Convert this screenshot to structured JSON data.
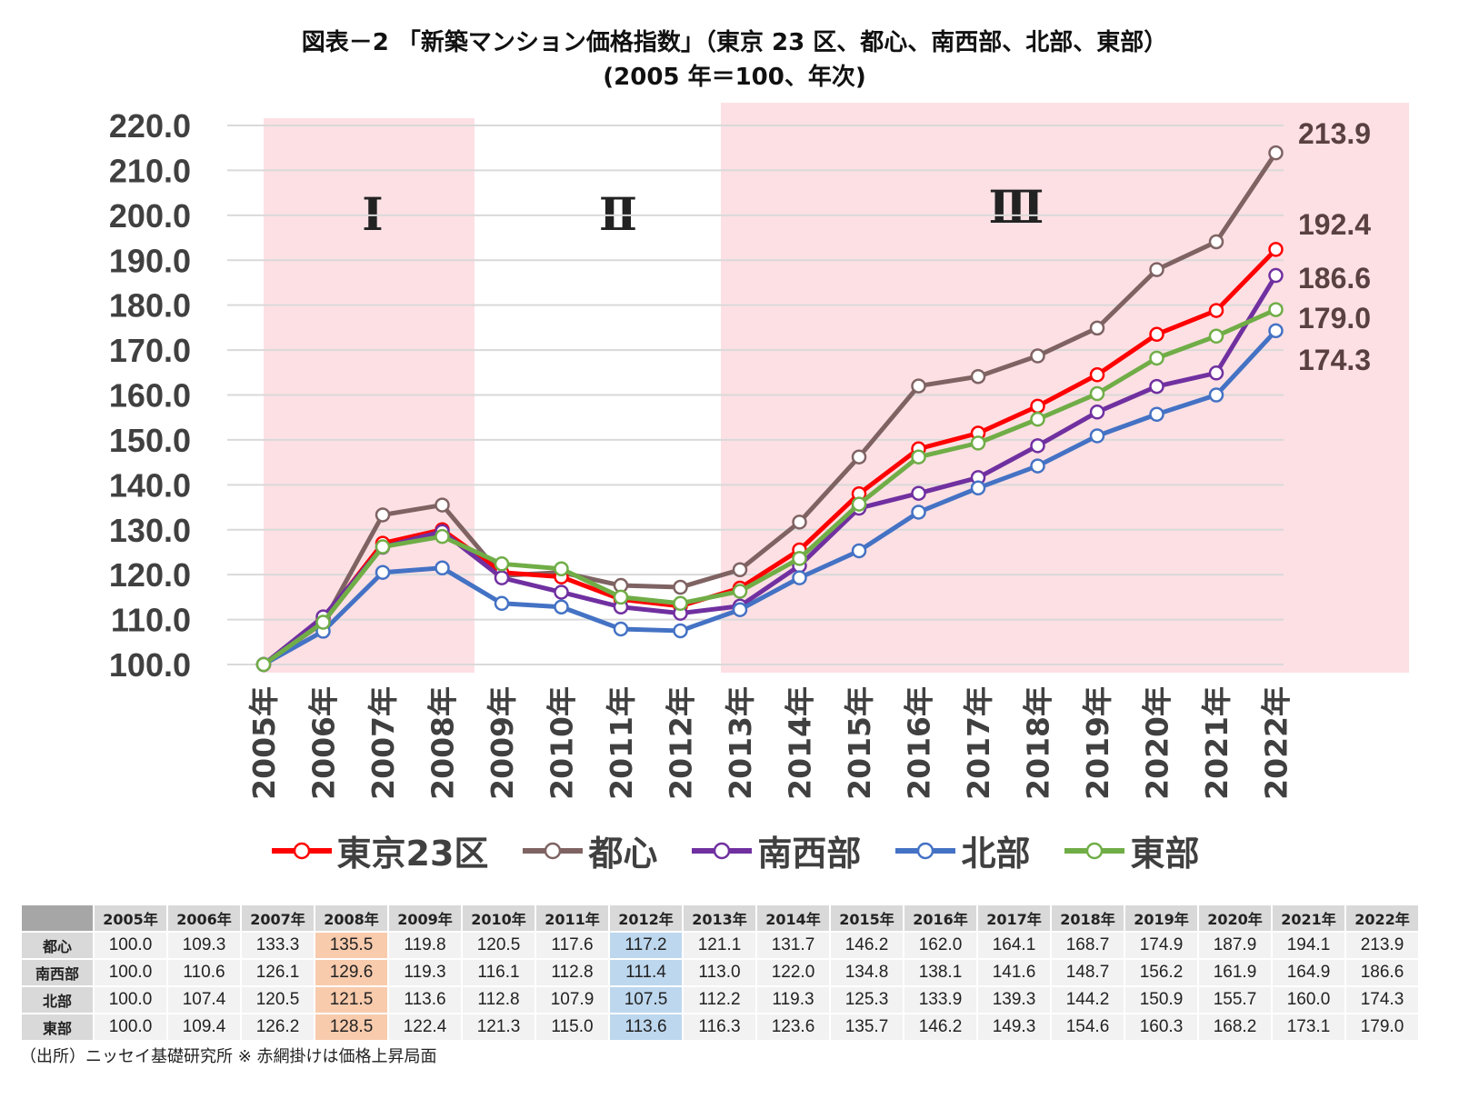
{
  "title_lines": [
    "図表－2 「新築マンション価格指数」（東京 23 区、都心、南西部、北部、東部）",
    "(2005 年＝100、年次)"
  ],
  "chart_data": {
    "type": "line",
    "title": "図表－2 「新築マンション価格指数」（東京 23 区、都心、南西部、北部、東部） (2005 年＝100、年次)",
    "xlabel": "",
    "ylabel": "",
    "ylim": [
      100,
      220
    ],
    "yticks": [
      "100.0",
      "110.0",
      "120.0",
      "130.0",
      "140.0",
      "150.0",
      "160.0",
      "170.0",
      "180.0",
      "190.0",
      "200.0",
      "210.0",
      "220.0"
    ],
    "grid": true,
    "legend_position": "bottom",
    "categories": [
      "2005年",
      "2006年",
      "2007年",
      "2008年",
      "2009年",
      "2010年",
      "2011年",
      "2012年",
      "2013年",
      "2014年",
      "2015年",
      "2016年",
      "2017年",
      "2018年",
      "2019年",
      "2020年",
      "2021年",
      "2022年"
    ],
    "shaded_periods": [
      {
        "label": "Ⅰ",
        "from": "2005年",
        "to": "2008年"
      },
      {
        "label": "Ⅱ",
        "from": "2009年",
        "to": "2012年",
        "shaded": false
      },
      {
        "label": "Ⅲ",
        "from": "2013年",
        "to": "2022年"
      }
    ],
    "series": [
      {
        "name": "東京23区",
        "color": "#ff0000",
        "values": [
          100.0,
          110.0,
          127.0,
          130.0,
          120.5,
          119.5,
          114.5,
          113.0,
          117.0,
          125.5,
          138.0,
          148.0,
          151.5,
          157.5,
          164.5,
          173.5,
          178.8,
          192.4
        ]
      },
      {
        "name": "都心",
        "color": "#7f6363",
        "values": [
          100.0,
          109.3,
          133.3,
          135.5,
          119.8,
          120.5,
          117.6,
          117.2,
          121.1,
          131.7,
          146.2,
          162.0,
          164.1,
          168.7,
          174.9,
          187.9,
          194.1,
          213.9
        ]
      },
      {
        "name": "南西部",
        "color": "#7030a0",
        "values": [
          100.0,
          110.6,
          126.1,
          129.6,
          119.3,
          116.1,
          112.8,
          111.4,
          113.0,
          122.0,
          134.8,
          138.1,
          141.6,
          148.7,
          156.2,
          161.9,
          164.9,
          186.6
        ]
      },
      {
        "name": "北部",
        "color": "#4472c4",
        "values": [
          100.0,
          107.4,
          120.5,
          121.5,
          113.6,
          112.8,
          107.9,
          107.5,
          112.2,
          119.3,
          125.3,
          133.9,
          139.3,
          144.2,
          150.9,
          155.7,
          160.0,
          174.3
        ]
      },
      {
        "name": "東部",
        "color": "#70ad47",
        "values": [
          100.0,
          109.4,
          126.2,
          128.5,
          122.4,
          121.3,
          115.0,
          113.6,
          116.3,
          123.6,
          135.7,
          146.2,
          149.3,
          154.6,
          160.3,
          168.2,
          173.1,
          179.0
        ]
      }
    ],
    "end_labels": [
      "213.9",
      "192.4",
      "186.6",
      "179.0",
      "174.3"
    ]
  },
  "table": {
    "columns": [
      "2005年",
      "2006年",
      "2007年",
      "2008年",
      "2009年",
      "2010年",
      "2011年",
      "2012年",
      "2013年",
      "2014年",
      "2015年",
      "2016年",
      "2017年",
      "2018年",
      "2019年",
      "2020年",
      "2021年",
      "2022年"
    ],
    "highlight_orange_col": "2008年",
    "highlight_blue_col": "2012年",
    "rows": [
      {
        "label": "都心",
        "cells": [
          "100.0",
          "109.3",
          "133.3",
          "135.5",
          "119.8",
          "120.5",
          "117.6",
          "117.2",
          "121.1",
          "131.7",
          "146.2",
          "162.0",
          "164.1",
          "168.7",
          "174.9",
          "187.9",
          "194.1",
          "213.9"
        ]
      },
      {
        "label": "南西部",
        "cells": [
          "100.0",
          "110.6",
          "126.1",
          "129.6",
          "119.3",
          "116.1",
          "112.8",
          "111.4",
          "113.0",
          "122.0",
          "134.8",
          "138.1",
          "141.6",
          "148.7",
          "156.2",
          "161.9",
          "164.9",
          "186.6"
        ]
      },
      {
        "label": "北部",
        "cells": [
          "100.0",
          "107.4",
          "120.5",
          "121.5",
          "113.6",
          "112.8",
          "107.9",
          "107.5",
          "112.2",
          "119.3",
          "125.3",
          "133.9",
          "139.3",
          "144.2",
          "150.9",
          "155.7",
          "160.0",
          "174.3"
        ]
      },
      {
        "label": "東部",
        "cells": [
          "100.0",
          "109.4",
          "126.2",
          "128.5",
          "122.4",
          "121.3",
          "115.0",
          "113.6",
          "116.3",
          "123.6",
          "135.7",
          "146.2",
          "149.3",
          "154.6",
          "160.3",
          "168.2",
          "173.1",
          "179.0"
        ]
      }
    ]
  },
  "source_note": "（出所）ニッセイ基礎研究所 ※ 赤網掛けは価格上昇局面",
  "colors": {
    "shade": "#fde0e4",
    "grid": "#d9d9d9"
  }
}
